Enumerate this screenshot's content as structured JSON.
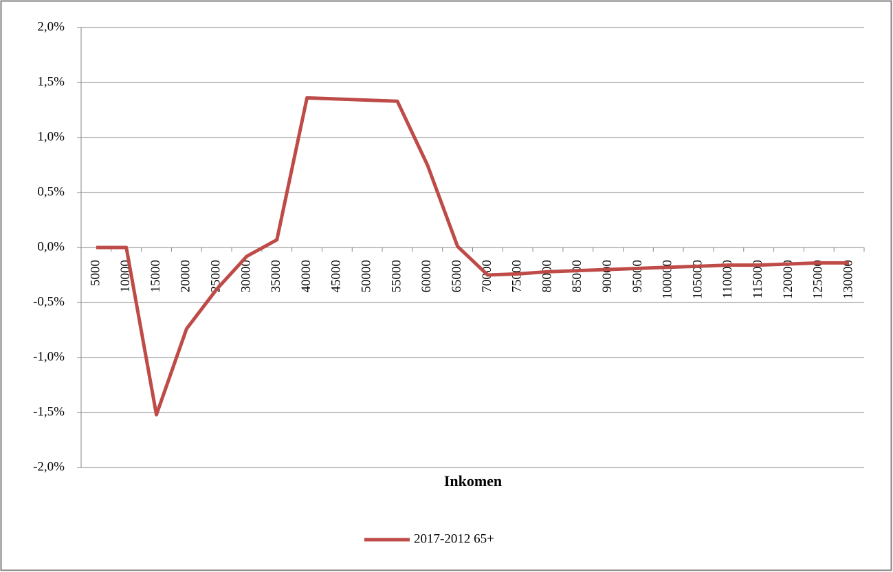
{
  "chart_data": {
    "type": "line",
    "x_label": "Inkomen",
    "categories": [
      "5000",
      "10000",
      "15000",
      "20000",
      "25000",
      "30000",
      "35000",
      "40000",
      "45000",
      "50000",
      "55000",
      "60000",
      "65000",
      "70000",
      "75000",
      "80000",
      "85000",
      "90000",
      "95000",
      "100000",
      "105000",
      "110000",
      "115000",
      "120000",
      "125000",
      "130000"
    ],
    "series": [
      {
        "name": "2017-2012 65+",
        "color": "#be4b48",
        "values": [
          0,
          0,
          -1.52,
          -0.74,
          -0.38,
          -0.08,
          0.07,
          1.36,
          1.35,
          1.34,
          1.33,
          0.75,
          0.01,
          -0.25,
          -0.24,
          -0.22,
          -0.21,
          -0.2,
          -0.19,
          -0.18,
          -0.17,
          -0.16,
          -0.16,
          -0.15,
          -0.14,
          -0.14
        ]
      }
    ],
    "ylim": [
      -2,
      2
    ],
    "yticks": [
      {
        "value": -2,
        "label": "-2,0%"
      },
      {
        "value": -1.5,
        "label": "-1,5%"
      },
      {
        "value": -1,
        "label": "-1,0%"
      },
      {
        "value": -0.5,
        "label": "-0,5%"
      },
      {
        "value": 0,
        "label": "0,0%"
      },
      {
        "value": 0.5,
        "label": "0,5%"
      },
      {
        "value": 1,
        "label": "1,0%"
      },
      {
        "value": 1.5,
        "label": "1,5%"
      },
      {
        "value": 2,
        "label": "2,0%"
      }
    ],
    "grid": true,
    "legend": "bottom"
  }
}
